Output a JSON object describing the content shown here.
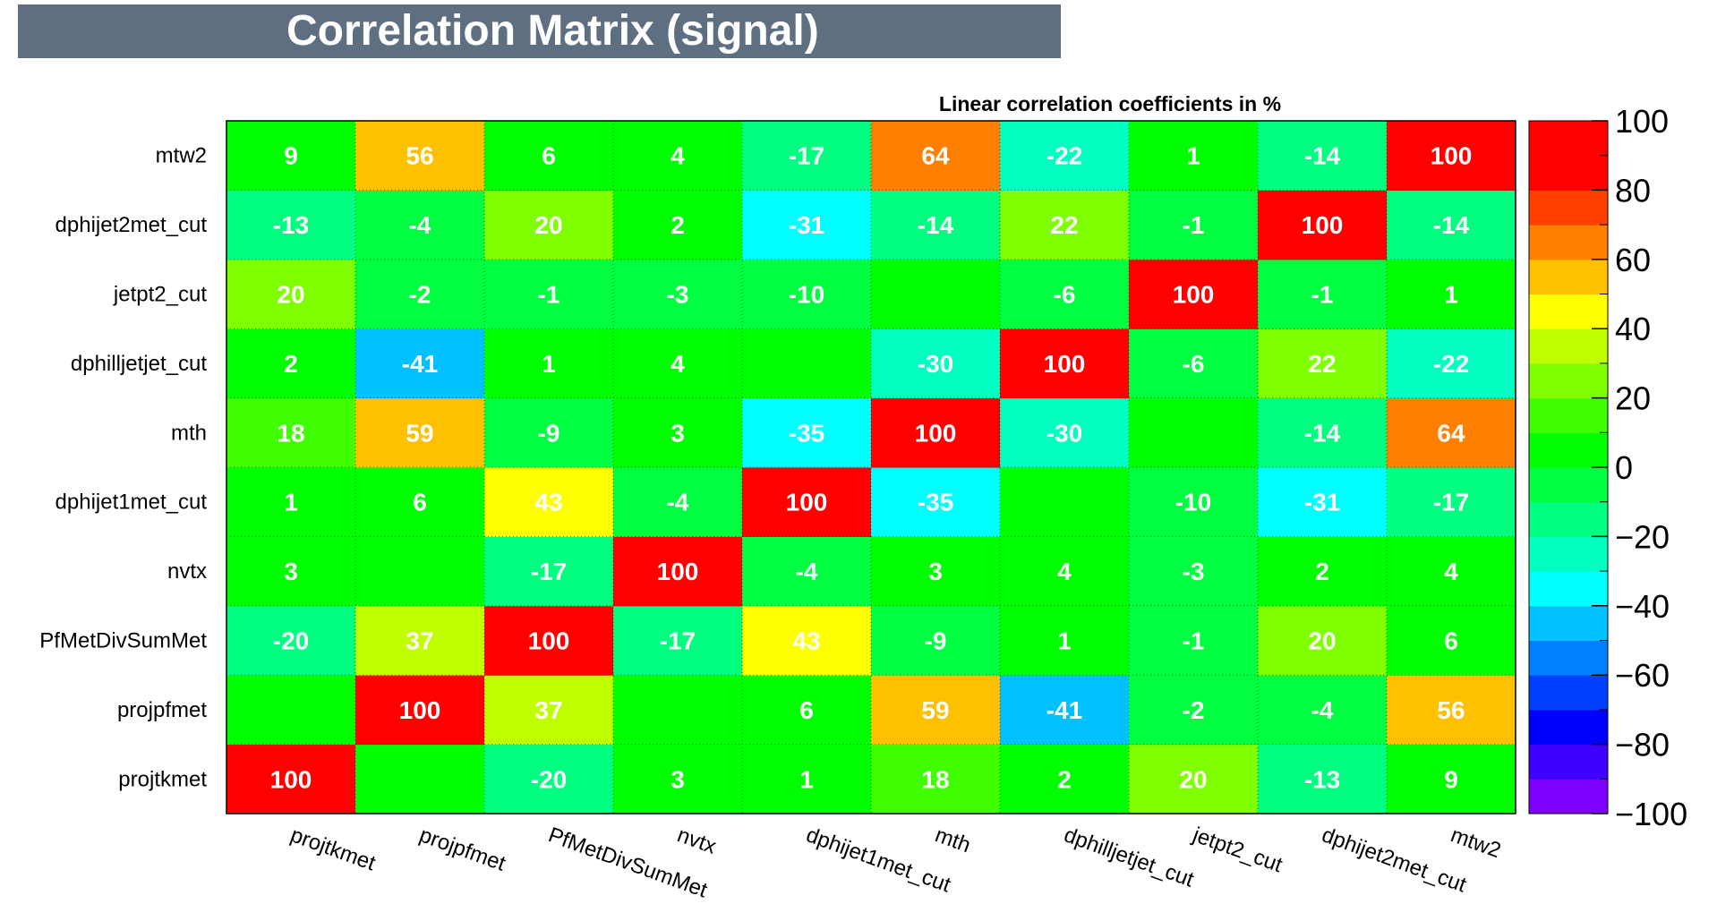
{
  "title": "Correlation Matrix (signal)",
  "chart_data": {
    "type": "heatmap",
    "title": "Linear correlation coefficients in %",
    "variables": [
      "projtkmet",
      "projpfmet",
      "PfMetDivSumMet",
      "nvtx",
      "dphijet1met_cut",
      "mth",
      "dphilljetjet_cut",
      "jetpt2_cut",
      "dphijet2met_cut",
      "mtw2"
    ],
    "x_labels": [
      "projtkmet",
      "projpfmet",
      "PfMetDivSumMet",
      "nvtx",
      "dphijet1met_cut",
      "mth",
      "dphilljetjet_cut",
      "jetpt2_cut",
      "dphijet2met_cut",
      "mtw2"
    ],
    "y_labels": [
      "projtkmet",
      "projpfmet",
      "PfMetDivSumMet",
      "nvtx",
      "dphijet1met_cut",
      "mth",
      "dphilljetjet_cut",
      "jetpt2_cut",
      "dphijet2met_cut",
      "mtw2"
    ],
    "matrix": [
      [
        100,
        0,
        -20,
        3,
        1,
        18,
        2,
        20,
        -13,
        9
      ],
      [
        0,
        100,
        37,
        0,
        6,
        59,
        -41,
        -2,
        -4,
        56
      ],
      [
        -20,
        37,
        100,
        -17,
        43,
        -9,
        1,
        -1,
        20,
        6
      ],
      [
        3,
        0,
        -17,
        100,
        -4,
        3,
        4,
        -3,
        2,
        4
      ],
      [
        1,
        6,
        43,
        -4,
        100,
        -35,
        0,
        -10,
        -31,
        -17
      ],
      [
        18,
        59,
        -9,
        3,
        -35,
        100,
        -30,
        0,
        -14,
        64
      ],
      [
        2,
        -41,
        1,
        4,
        0,
        -30,
        100,
        -6,
        22,
        -22
      ],
      [
        20,
        -2,
        -1,
        -3,
        -10,
        0,
        -6,
        100,
        -1,
        1
      ],
      [
        -13,
        -4,
        20,
        2,
        -31,
        -14,
        22,
        -1,
        100,
        -14
      ],
      [
        9,
        56,
        6,
        4,
        -17,
        64,
        -22,
        1,
        -14,
        100
      ]
    ],
    "shown_labels": [
      [
        "100",
        "",
        "-20",
        "3",
        "1",
        "18",
        "2",
        "20",
        "-13",
        "9"
      ],
      [
        "",
        "100",
        "37",
        "",
        "6",
        "59",
        "-41",
        "-2",
        "-4",
        "56"
      ],
      [
        "-20",
        "37",
        "100",
        "-17",
        "43",
        "-9",
        "1",
        "-1",
        "20",
        "6"
      ],
      [
        "3",
        "",
        "-17",
        "100",
        "-4",
        "3",
        "4",
        "-3",
        "2",
        "4"
      ],
      [
        "1",
        "6",
        "43",
        "-4",
        "100",
        "-35",
        "",
        "-10",
        "-31",
        "-17"
      ],
      [
        "18",
        "59",
        "-9",
        "3",
        "-35",
        "100",
        "-30",
        "",
        "-14",
        "64"
      ],
      [
        "2",
        "-41",
        "1",
        "4",
        "",
        "-30",
        "100",
        "-6",
        "22",
        "-22"
      ],
      [
        "20",
        "-2",
        "-1",
        "-3",
        "-10",
        "",
        "-6",
        "100",
        "-1",
        "1"
      ],
      [
        "-13",
        "-4",
        "20",
        "2",
        "-31",
        "-14",
        "22",
        "-1",
        "100",
        "-14"
      ],
      [
        "9",
        "56",
        "6",
        "4",
        "-17",
        "64",
        "-22",
        "1",
        "-14",
        "100"
      ]
    ],
    "zlim": [
      -100,
      100
    ],
    "colorbar_ticks": [
      "100",
      "80",
      "60",
      "40",
      "20",
      "0",
      "−20",
      "−40",
      "−60",
      "−80",
      "−100"
    ],
    "palette": [
      "#7f00ff",
      "#3f00ff",
      "#0000ff",
      "#0040ff",
      "#0080ff",
      "#00c0ff",
      "#00ffff",
      "#00ffc0",
      "#00ff80",
      "#00ff40",
      "#00ff00",
      "#40ff00",
      "#80ff00",
      "#c0ff00",
      "#ffff00",
      "#ffc000",
      "#ff8000",
      "#ff4000",
      "#ff0000",
      "#ff0000"
    ],
    "colors": {
      "title_bar": "#5f6f82",
      "cell_text": "#ffffff",
      "grid": "#000000"
    }
  }
}
